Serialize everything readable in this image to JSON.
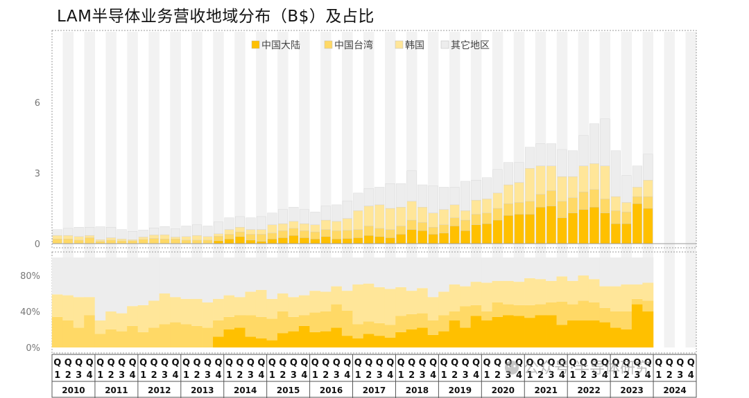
{
  "title": "LAM半导体业务营收地域分布（B$）及占比",
  "colors": {
    "mainland": "#FFC000",
    "taiwan": "#FFD966",
    "korea": "#FFE699",
    "others": "#EDEDED",
    "column_band": "#F2F2F2"
  },
  "chart_data": {
    "type": "bar",
    "stacked": true,
    "legend_position": "top-center",
    "series_names": [
      "中国大陆",
      "中国台湾",
      "韩国",
      "其它地区"
    ],
    "years": [
      "2010",
      "2011",
      "2012",
      "2013",
      "2014",
      "2015",
      "2016",
      "2017",
      "2018",
      "2019",
      "2020",
      "2021",
      "2022",
      "2023",
      "2024"
    ],
    "quarter_letter": "Q",
    "quarter_numbers": [
      "1",
      "2",
      "3",
      "4"
    ],
    "top_panel": {
      "ylim": [
        0,
        9
      ],
      "yticks": [
        "0",
        "3",
        "6"
      ],
      "mainland": [
        0,
        0,
        0,
        0,
        0,
        0,
        0,
        0,
        0,
        0,
        0,
        0,
        0,
        0,
        0,
        0.12,
        0.2,
        0.3,
        0.15,
        0.1,
        0.2,
        0.25,
        0.35,
        0.25,
        0.2,
        0.3,
        0.2,
        0.22,
        0.25,
        0.35,
        0.3,
        0.25,
        0.4,
        0.6,
        0.55,
        0.4,
        0.45,
        0.75,
        0.55,
        0.8,
        0.85,
        1.0,
        1.2,
        1.25,
        1.25,
        1.55,
        1.6,
        1.1,
        1.3,
        1.45,
        1.55,
        1.3,
        0.85,
        0.85,
        1.7,
        1.5
      ],
      "taiwan": [
        0.2,
        0.2,
        0.15,
        0.25,
        0.1,
        0.15,
        0.12,
        0.12,
        0.18,
        0.22,
        0.2,
        0.2,
        0.15,
        0.15,
        0.15,
        0.2,
        0.2,
        0.2,
        0.25,
        0.3,
        0.25,
        0.3,
        0.3,
        0.3,
        0.3,
        0.3,
        0.35,
        0.35,
        0.35,
        0.4,
        0.35,
        0.35,
        0.35,
        0.4,
        0.35,
        0.3,
        0.35,
        0.35,
        0.45,
        0.45,
        0.45,
        0.5,
        0.5,
        0.5,
        0.55,
        0.55,
        0.65,
        0.7,
        0.65,
        0.75,
        0.75,
        0.6,
        0.55,
        0.5,
        0.3,
        0.5
      ],
      "korea": [
        0.15,
        0.15,
        0.15,
        0.1,
        0.07,
        0.1,
        0.08,
        0.05,
        0.1,
        0.15,
        0.18,
        0.08,
        0.15,
        0.2,
        0.15,
        0.1,
        0.2,
        0.2,
        0.2,
        0.2,
        0.35,
        0.3,
        0.3,
        0.3,
        0.3,
        0.4,
        0.4,
        0.5,
        0.8,
        0.85,
        1.0,
        0.9,
        0.8,
        0.8,
        0.65,
        0.6,
        0.65,
        0.55,
        0.4,
        0.6,
        0.6,
        0.65,
        0.8,
        0.85,
        1.4,
        1.2,
        1.05,
        1.05,
        0.9,
        1.1,
        1.1,
        1.4,
        0.6,
        0.4,
        0.4,
        0.7
      ],
      "others": [
        0.25,
        0.3,
        0.4,
        0.35,
        0.55,
        0.45,
        0.4,
        0.35,
        0.3,
        0.3,
        0.35,
        0.35,
        0.45,
        0.45,
        0.45,
        0.5,
        0.5,
        0.45,
        0.5,
        0.55,
        0.5,
        0.6,
        0.6,
        0.6,
        0.55,
        0.6,
        0.7,
        0.75,
        0.75,
        0.75,
        0.75,
        1.05,
        1.0,
        1.3,
        0.95,
        1.15,
        0.95,
        0.75,
        1.25,
        0.85,
        0.9,
        1.0,
        0.95,
        0.85,
        0.9,
        0.95,
        0.95,
        1.15,
        1.1,
        1.3,
        1.7,
        2.0,
        1.95,
        1.15,
        0.9,
        1.1
      ]
    },
    "bottom_panel": {
      "ylim": [
        0,
        100
      ],
      "yticks": [
        "0%",
        "40%",
        "80%"
      ],
      "mainland": [
        0,
        0,
        0,
        0,
        0,
        0,
        0,
        0,
        0,
        0,
        0,
        0,
        0,
        0,
        0,
        12,
        20,
        22,
        12,
        10,
        8,
        16,
        18,
        24,
        17,
        18,
        22,
        13,
        10,
        15,
        13,
        11,
        17,
        20,
        22,
        14,
        18,
        30,
        22,
        35,
        30,
        34,
        36,
        35,
        33,
        36,
        36,
        25,
        30,
        30,
        30,
        28,
        22,
        20,
        48,
        40
      ],
      "taiwan": [
        34,
        30,
        22,
        36,
        15,
        20,
        18,
        24,
        17,
        22,
        26,
        28,
        26,
        24,
        22,
        18,
        14,
        14,
        24,
        24,
        24,
        24,
        16,
        12,
        22,
        22,
        26,
        28,
        16,
        14,
        14,
        14,
        18,
        17,
        16,
        16,
        18,
        10,
        24,
        12,
        10,
        16,
        12,
        12,
        14,
        12,
        14,
        26,
        18,
        22,
        20,
        16,
        18,
        20,
        6,
        12
      ],
      "korea": [
        25,
        28,
        34,
        20,
        15,
        20,
        20,
        22,
        30,
        30,
        34,
        28,
        28,
        30,
        28,
        24,
        24,
        20,
        26,
        30,
        22,
        20,
        22,
        22,
        24,
        22,
        20,
        22,
        44,
        42,
        40,
        40,
        32,
        26,
        28,
        26,
        26,
        30,
        22,
        26,
        32,
        24,
        26,
        26,
        30,
        28,
        24,
        28,
        26,
        28,
        26,
        24,
        28,
        30,
        16,
        20
      ],
      "others": [
        41,
        42,
        44,
        44,
        70,
        60,
        62,
        54,
        53,
        48,
        40,
        44,
        46,
        46,
        50,
        46,
        42,
        44,
        38,
        36,
        46,
        40,
        44,
        42,
        37,
        38,
        32,
        37,
        30,
        29,
        33,
        35,
        33,
        37,
        34,
        44,
        38,
        30,
        32,
        27,
        28,
        26,
        26,
        27,
        23,
        24,
        26,
        21,
        26,
        20,
        24,
        32,
        32,
        30,
        30,
        28
      ]
    }
  },
  "watermark": "公众号·半导体研究"
}
